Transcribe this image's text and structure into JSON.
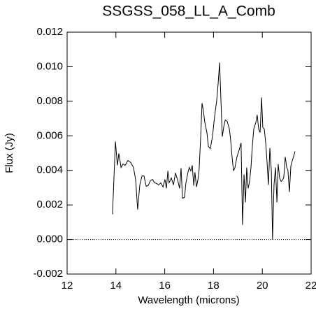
{
  "chart_data": {
    "type": "line",
    "title": "SSGSS_058_LL_A_Comb",
    "xlabel": "Wavelength (microns)",
    "ylabel": "Flux (Jy)",
    "xlim": [
      12,
      22
    ],
    "xticks": [
      12,
      14,
      16,
      18,
      20,
      22
    ],
    "ylim": [
      -0.002,
      0.012
    ],
    "yticks": [
      {
        "value": -0.002,
        "label": "-0.002"
      },
      {
        "value": 0,
        "label": "0.000"
      },
      {
        "value": 0.002,
        "label": "0.002"
      },
      {
        "value": 0.004,
        "label": "0.004"
      },
      {
        "value": 0.006,
        "label": "0.006"
      },
      {
        "value": 0.008,
        "label": "0.008"
      },
      {
        "value": 0.01,
        "label": "0.010"
      },
      {
        "value": 0.012,
        "label": "0.012"
      }
    ],
    "reference_line": 0,
    "series": [
      {
        "color": "#000000",
        "x": [
          13.86,
          13.98,
          14.06,
          14.12,
          14.21,
          14.29,
          14.38,
          14.49,
          14.61,
          14.72,
          14.81,
          14.89,
          14.98,
          15.07,
          15.15,
          15.24,
          15.32,
          15.41,
          15.5,
          15.58,
          15.67,
          15.75,
          15.84,
          15.93,
          16.01,
          16.07,
          16.13,
          16.18,
          16.27,
          16.36,
          16.44,
          16.53,
          16.61,
          16.67,
          16.73,
          16.81,
          16.87,
          16.96,
          17.01,
          17.07,
          17.13,
          17.19,
          17.24,
          17.3,
          17.36,
          17.41,
          17.47,
          17.53,
          17.59,
          17.64,
          17.73,
          17.79,
          17.87,
          17.96,
          18.02,
          18.07,
          18.13,
          18.19,
          18.25,
          18.3,
          18.36,
          18.42,
          18.48,
          18.56,
          18.65,
          18.7,
          18.76,
          18.82,
          18.88,
          18.96,
          19.05,
          19.13,
          19.19,
          19.25,
          19.31,
          19.36,
          19.42,
          19.48,
          19.54,
          19.59,
          19.65,
          19.74,
          19.79,
          19.85,
          19.91,
          19.97,
          20.02,
          20.08,
          20.14,
          20.19,
          20.25,
          20.31,
          20.37,
          20.42,
          20.48,
          20.54,
          20.6,
          20.65,
          20.71,
          20.77,
          20.83,
          20.88,
          20.94,
          21.0,
          21.05,
          21.11,
          21.17,
          21.23,
          21.28,
          21.34
        ],
        "values": [
          0.00146,
          0.00567,
          0.00429,
          0.00498,
          0.00417,
          0.00437,
          0.00429,
          0.00457,
          0.00445,
          0.00417,
          0.00344,
          0.00174,
          0.00316,
          0.00368,
          0.00368,
          0.00308,
          0.00312,
          0.0034,
          0.00348,
          0.00328,
          0.00324,
          0.00316,
          0.00328,
          0.00304,
          0.00348,
          0.00296,
          0.00397,
          0.00328,
          0.00356,
          0.00316,
          0.00385,
          0.00344,
          0.00296,
          0.00413,
          0.00239,
          0.00243,
          0.00328,
          0.00393,
          0.00417,
          0.00397,
          0.00429,
          0.00312,
          0.00389,
          0.00304,
          0.00344,
          0.00405,
          0.00579,
          0.00789,
          0.00741,
          0.0068,
          0.00619,
          0.00538,
          0.00526,
          0.00599,
          0.0068,
          0.00741,
          0.00802,
          0.00903,
          0.01024,
          0.00822,
          0.00595,
          0.00652,
          0.00692,
          0.00684,
          0.0064,
          0.00579,
          0.00478,
          0.00397,
          0.00417,
          0.00478,
          0.00518,
          0.00559,
          0.00085,
          0.00377,
          0.00215,
          0.00417,
          0.00296,
          0.00336,
          0.00425,
          0.00538,
          0.0064,
          0.0068,
          0.00721,
          0.0064,
          0.00619,
          0.00822,
          0.00648,
          0.0064,
          0.00559,
          0.00457,
          0.00316,
          0.0053,
          0.00397,
          0.0,
          0.00316,
          0.00417,
          0.00215,
          0.00437,
          0.00356,
          0.00336,
          0.00344,
          0.0036,
          0.00478,
          0.00417,
          0.00401,
          0.00275,
          0.00425,
          0.00457,
          0.00478,
          0.0051
        ]
      }
    ]
  }
}
